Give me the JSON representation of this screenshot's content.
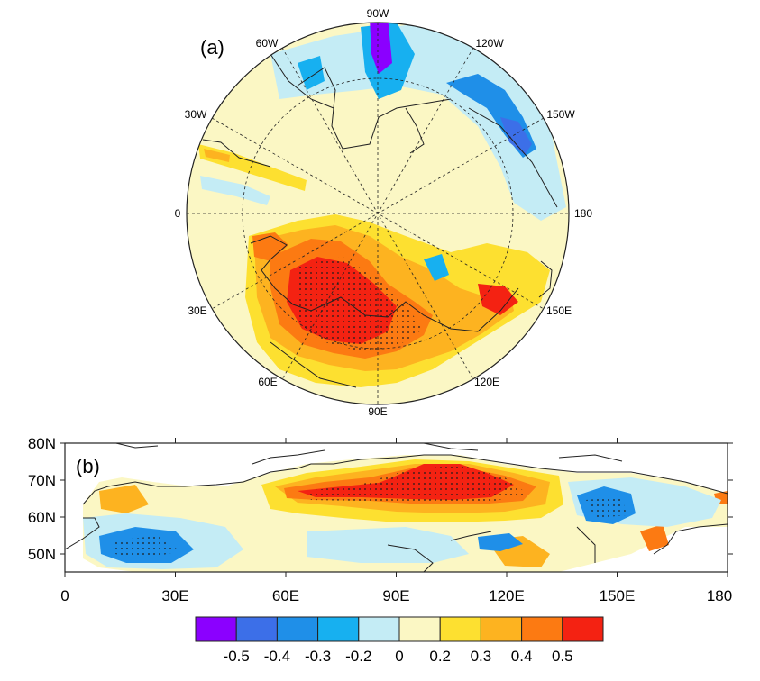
{
  "panel_a": {
    "label": "(a)",
    "longitude_labels": [
      "90W",
      "120W",
      "150W",
      "180",
      "150E",
      "120E",
      "90E",
      "60E",
      "30E",
      "0",
      "30W",
      "60W"
    ]
  },
  "panel_b": {
    "label": "(b)",
    "lat_labels": [
      "80N",
      "70N",
      "60N",
      "50N"
    ],
    "lon_labels": [
      "0",
      "30E",
      "60E",
      "90E",
      "120E",
      "150E",
      "180"
    ]
  },
  "colorbar": {
    "colors": [
      "#8b00ff",
      "#3c6fe8",
      "#1f8fe8",
      "#17b0f0",
      "#c4ecf5",
      "#fbf7c4",
      "#fde030",
      "#fdb320",
      "#fc7a12",
      "#f42212"
    ],
    "labels": [
      "-0.5",
      "-0.4",
      "-0.3",
      "-0.2",
      "0",
      "0.2",
      "0.3",
      "0.4",
      "0.5"
    ]
  },
  "palette": {
    "background": "#fbf7c4",
    "land_outline": "#222222",
    "stipple": "#1a1a1a"
  }
}
